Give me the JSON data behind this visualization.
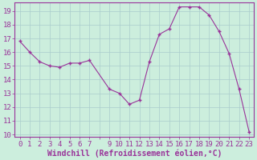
{
  "x": [
    0,
    1,
    2,
    3,
    4,
    5,
    6,
    7,
    9,
    10,
    11,
    12,
    13,
    14,
    15,
    16,
    17,
    18,
    19,
    20,
    21,
    22,
    23
  ],
  "y": [
    16.8,
    16.0,
    15.3,
    15.0,
    14.9,
    15.2,
    15.2,
    15.4,
    13.3,
    13.0,
    12.2,
    12.5,
    15.3,
    17.3,
    17.7,
    19.3,
    19.3,
    19.3,
    18.7,
    17.5,
    15.9,
    13.3,
    10.2
  ],
  "line_color": "#993399",
  "marker": "+",
  "bg_color": "#cceedd",
  "grid_color": "#aacccc",
  "xlabel": "Windchill (Refroidissement éolien,°C)",
  "ylim": [
    9.8,
    19.6
  ],
  "xlim": [
    -0.5,
    23.5
  ],
  "yticks": [
    10,
    11,
    12,
    13,
    14,
    15,
    16,
    17,
    18,
    19
  ],
  "xtick_labels": [
    "0",
    "1",
    "2",
    "3",
    "4",
    "5",
    "6",
    "7",
    "",
    "9",
    "10",
    "11",
    "12",
    "13",
    "14",
    "15",
    "16",
    "17",
    "18",
    "19",
    "20",
    "21",
    "22",
    "23"
  ],
  "tick_color": "#993399",
  "label_color": "#993399",
  "font_size": 6.5,
  "xlabel_font_size": 7.0
}
